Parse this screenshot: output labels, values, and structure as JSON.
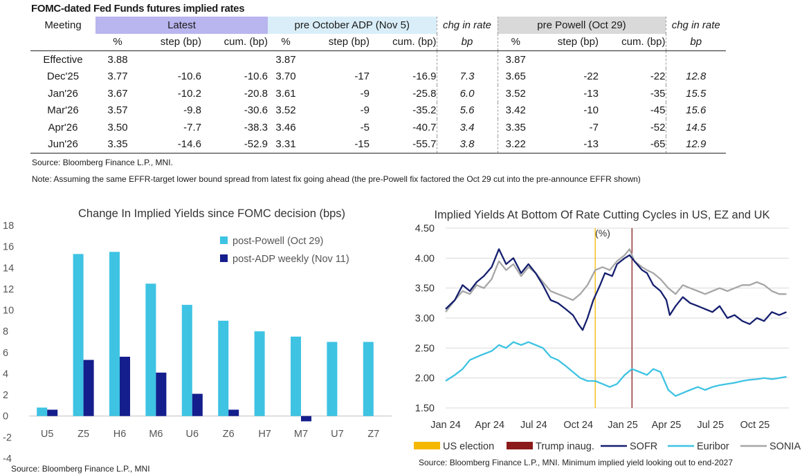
{
  "table": {
    "title": "FOMC-dated Fed Funds futures implied rates",
    "meeting_label": "Meeting",
    "group_latest": "Latest",
    "group_adp": "pre October ADP (Nov 5)",
    "group_chg1": "chg in rate",
    "group_powell": "pre Powell (Oct 29)",
    "group_chg2": "chg in rate",
    "units": [
      "%",
      "step (bp)",
      "cum. (bp)",
      "%",
      "step (bp)",
      "cum. (bp)",
      "bp",
      "%",
      "step (bp)",
      "cum. (bp)",
      "bp"
    ],
    "rows": [
      {
        "meeting": "Effective",
        "cells": [
          "3.88",
          "",
          "",
          "3.87",
          "",
          "",
          "",
          "3.87",
          "",
          "",
          ""
        ]
      },
      {
        "meeting": "Dec'25",
        "cells": [
          "3.77",
          "-10.6",
          "-10.6",
          "3.70",
          "-17",
          "-16.9",
          "7.3",
          "3.65",
          "-22",
          "-22",
          "12.8"
        ]
      },
      {
        "meeting": "Jan'26",
        "cells": [
          "3.67",
          "-10.2",
          "-20.8",
          "3.61",
          "-9",
          "-25.8",
          "6.0",
          "3.52",
          "-13",
          "-35",
          "15.5"
        ]
      },
      {
        "meeting": "Mar'26",
        "cells": [
          "3.57",
          "-9.8",
          "-30.6",
          "3.52",
          "-9",
          "-35.2",
          "5.6",
          "3.42",
          "-10",
          "-45",
          "15.6"
        ]
      },
      {
        "meeting": "Apr'26",
        "cells": [
          "3.50",
          "-7.7",
          "-38.3",
          "3.46",
          "-5",
          "-40.7",
          "3.4",
          "3.35",
          "-7",
          "-52",
          "14.5"
        ]
      },
      {
        "meeting": "Jun'26",
        "cells": [
          "3.35",
          "-14.6",
          "-52.9",
          "3.31",
          "-15",
          "-55.7",
          "3.8",
          "3.22",
          "-13",
          "-65",
          "12.9"
        ]
      }
    ],
    "source": "Source: Bloomberg Finance L.P., MNI.",
    "note": "Note: Assuming the same  EFFR-target lower bound spread from latest fix going ahead (the pre-Powell fix factored the Oct 29 cut into the pre-announce EFFR shown)"
  },
  "chart_data": [
    {
      "type": "bar",
      "title": "Change In Implied Yields since FOMC decision (bps)",
      "categories": [
        "U5",
        "Z5",
        "H6",
        "M6",
        "U6",
        "Z6",
        "H7",
        "M7",
        "U7",
        "Z7"
      ],
      "ylim": [
        -4,
        18
      ],
      "yticks": [
        -4,
        -2,
        0,
        2,
        4,
        6,
        8,
        10,
        12,
        14,
        16,
        18
      ],
      "grid": false,
      "legend_position": "top-right",
      "series": [
        {
          "name": "post-Powell (Oct 29)",
          "color": "#3ec3e3",
          "values": [
            0.8,
            15.3,
            15.5,
            12.5,
            10.5,
            9.0,
            8.0,
            7.5,
            7.0,
            7.0
          ]
        },
        {
          "name": "post-ADP weekly (Nov 11)",
          "color": "#141e8c",
          "values": [
            0.6,
            5.3,
            5.6,
            4.1,
            2.1,
            0.6,
            0,
            -0.5,
            0,
            0
          ]
        }
      ],
      "source": "Source: Bloomberg Finance L.P., MNI"
    },
    {
      "type": "line",
      "title": "Implied Yields At Bottom Of Rate Cutting Cycles in US, EZ and UK",
      "ylabel": "(%)",
      "ylim": [
        1.5,
        4.5
      ],
      "yticks": [
        "4.50",
        "4.00",
        "3.50",
        "3.00",
        "2.50",
        "2.00",
        "1.50"
      ],
      "xlim": [
        "2024-01-01",
        "2025-12-10"
      ],
      "xticks": [
        {
          "label": "Jan 24",
          "date": "2024-01-01"
        },
        {
          "label": "Apr 24",
          "date": "2024-04-01"
        },
        {
          "label": "Jul 24",
          "date": "2024-07-01"
        },
        {
          "label": "Oct 24",
          "date": "2024-10-01"
        },
        {
          "label": "Jan 25",
          "date": "2025-01-01"
        },
        {
          "label": "Apr 25",
          "date": "2025-04-01"
        },
        {
          "label": "Jul 25",
          "date": "2025-07-01"
        },
        {
          "label": "Oct 25",
          "date": "2025-10-01"
        }
      ],
      "grid": true,
      "legend_position": "bottom",
      "vlines": [
        {
          "name": "US election",
          "date": "2024-11-05",
          "color": "#f5b800"
        },
        {
          "name": "Trump inaug.",
          "date": "2025-01-20",
          "color": "#8b1a1a"
        }
      ],
      "series": [
        {
          "name": "SOFR",
          "color": "#141e6e",
          "points": [
            [
              "2024-01-01",
              3.15
            ],
            [
              "2024-01-20",
              3.3
            ],
            [
              "2024-02-05",
              3.55
            ],
            [
              "2024-02-20",
              3.45
            ],
            [
              "2024-03-05",
              3.6
            ],
            [
              "2024-03-20",
              3.7
            ],
            [
              "2024-04-05",
              3.85
            ],
            [
              "2024-04-20",
              4.15
            ],
            [
              "2024-05-05",
              3.9
            ],
            [
              "2024-05-20",
              4.0
            ],
            [
              "2024-06-05",
              3.75
            ],
            [
              "2024-06-20",
              3.9
            ],
            [
              "2024-07-05",
              3.75
            ],
            [
              "2024-07-20",
              3.55
            ],
            [
              "2024-08-05",
              3.3
            ],
            [
              "2024-08-20",
              3.25
            ],
            [
              "2024-09-05",
              3.15
            ],
            [
              "2024-09-20",
              3.05
            ],
            [
              "2024-10-01",
              2.9
            ],
            [
              "2024-10-10",
              2.8
            ],
            [
              "2024-10-20",
              3.0
            ],
            [
              "2024-11-01",
              3.3
            ],
            [
              "2024-11-15",
              3.55
            ],
            [
              "2024-11-25",
              3.75
            ],
            [
              "2024-12-10",
              3.7
            ],
            [
              "2024-12-20",
              3.9
            ],
            [
              "2025-01-05",
              4.0
            ],
            [
              "2025-01-15",
              4.05
            ],
            [
              "2025-01-25",
              3.95
            ],
            [
              "2025-02-10",
              3.8
            ],
            [
              "2025-02-20",
              3.75
            ],
            [
              "2025-03-05",
              3.55
            ],
            [
              "2025-03-20",
              3.45
            ],
            [
              "2025-04-01",
              3.3
            ],
            [
              "2025-04-08",
              3.05
            ],
            [
              "2025-04-20",
              3.2
            ],
            [
              "2025-05-05",
              3.35
            ],
            [
              "2025-05-20",
              3.25
            ],
            [
              "2025-06-05",
              3.2
            ],
            [
              "2025-06-20",
              3.15
            ],
            [
              "2025-07-05",
              3.1
            ],
            [
              "2025-07-20",
              3.2
            ],
            [
              "2025-08-05",
              3.0
            ],
            [
              "2025-08-20",
              3.05
            ],
            [
              "2025-09-05",
              2.95
            ],
            [
              "2025-09-20",
              2.9
            ],
            [
              "2025-10-05",
              3.0
            ],
            [
              "2025-10-20",
              2.95
            ],
            [
              "2025-11-05",
              3.1
            ],
            [
              "2025-11-20",
              3.05
            ],
            [
              "2025-12-05",
              3.1
            ]
          ]
        },
        {
          "name": "Euribor",
          "color": "#3ec3e3",
          "points": [
            [
              "2024-01-01",
              1.95
            ],
            [
              "2024-01-20",
              2.05
            ],
            [
              "2024-02-05",
              2.15
            ],
            [
              "2024-02-20",
              2.3
            ],
            [
              "2024-03-05",
              2.35
            ],
            [
              "2024-03-20",
              2.4
            ],
            [
              "2024-04-05",
              2.45
            ],
            [
              "2024-04-20",
              2.55
            ],
            [
              "2024-05-05",
              2.5
            ],
            [
              "2024-05-20",
              2.6
            ],
            [
              "2024-06-05",
              2.55
            ],
            [
              "2024-06-20",
              2.6
            ],
            [
              "2024-07-05",
              2.55
            ],
            [
              "2024-07-20",
              2.5
            ],
            [
              "2024-08-05",
              2.35
            ],
            [
              "2024-08-20",
              2.3
            ],
            [
              "2024-09-05",
              2.2
            ],
            [
              "2024-09-20",
              2.1
            ],
            [
              "2024-10-05",
              2.0
            ],
            [
              "2024-10-20",
              1.95
            ],
            [
              "2024-11-05",
              1.95
            ],
            [
              "2024-11-20",
              1.9
            ],
            [
              "2024-12-05",
              1.85
            ],
            [
              "2024-12-20",
              1.9
            ],
            [
              "2025-01-05",
              2.05
            ],
            [
              "2025-01-20",
              2.15
            ],
            [
              "2025-02-05",
              2.1
            ],
            [
              "2025-02-20",
              2.05
            ],
            [
              "2025-03-05",
              2.15
            ],
            [
              "2025-03-20",
              2.1
            ],
            [
              "2025-04-05",
              1.8
            ],
            [
              "2025-04-20",
              1.7
            ],
            [
              "2025-05-05",
              1.75
            ],
            [
              "2025-05-20",
              1.8
            ],
            [
              "2025-06-05",
              1.85
            ],
            [
              "2025-06-20",
              1.8
            ],
            [
              "2025-07-05",
              1.85
            ],
            [
              "2025-07-20",
              1.88
            ],
            [
              "2025-08-05",
              1.9
            ],
            [
              "2025-08-20",
              1.92
            ],
            [
              "2025-09-05",
              1.95
            ],
            [
              "2025-09-20",
              1.97
            ],
            [
              "2025-10-05",
              1.98
            ],
            [
              "2025-10-20",
              2.0
            ],
            [
              "2025-11-05",
              1.98
            ],
            [
              "2025-11-20",
              2.0
            ],
            [
              "2025-12-05",
              2.02
            ]
          ]
        },
        {
          "name": "SONIA",
          "color": "#a6a6a6",
          "points": [
            [
              "2024-01-01",
              3.1
            ],
            [
              "2024-01-20",
              3.3
            ],
            [
              "2024-02-05",
              3.45
            ],
            [
              "2024-02-20",
              3.4
            ],
            [
              "2024-03-05",
              3.55
            ],
            [
              "2024-03-20",
              3.5
            ],
            [
              "2024-04-05",
              3.65
            ],
            [
              "2024-04-20",
              3.95
            ],
            [
              "2024-05-05",
              3.8
            ],
            [
              "2024-05-20",
              3.9
            ],
            [
              "2024-06-05",
              3.7
            ],
            [
              "2024-06-20",
              3.85
            ],
            [
              "2024-07-05",
              3.75
            ],
            [
              "2024-07-20",
              3.6
            ],
            [
              "2024-08-05",
              3.45
            ],
            [
              "2024-08-20",
              3.4
            ],
            [
              "2024-09-05",
              3.35
            ],
            [
              "2024-09-20",
              3.3
            ],
            [
              "2024-10-05",
              3.4
            ],
            [
              "2024-10-20",
              3.55
            ],
            [
              "2024-11-05",
              3.8
            ],
            [
              "2024-11-20",
              3.85
            ],
            [
              "2024-12-05",
              3.8
            ],
            [
              "2024-12-20",
              3.95
            ],
            [
              "2025-01-05",
              4.05
            ],
            [
              "2025-01-15",
              4.15
            ],
            [
              "2025-01-25",
              3.95
            ],
            [
              "2025-02-10",
              3.85
            ],
            [
              "2025-02-20",
              3.8
            ],
            [
              "2025-03-05",
              3.75
            ],
            [
              "2025-03-20",
              3.65
            ],
            [
              "2025-04-05",
              3.5
            ],
            [
              "2025-04-20",
              3.4
            ],
            [
              "2025-05-05",
              3.55
            ],
            [
              "2025-05-20",
              3.5
            ],
            [
              "2025-06-05",
              3.45
            ],
            [
              "2025-06-20",
              3.4
            ],
            [
              "2025-07-05",
              3.45
            ],
            [
              "2025-07-20",
              3.5
            ],
            [
              "2025-08-05",
              3.45
            ],
            [
              "2025-08-20",
              3.5
            ],
            [
              "2025-09-05",
              3.55
            ],
            [
              "2025-09-20",
              3.55
            ],
            [
              "2025-10-05",
              3.6
            ],
            [
              "2025-10-20",
              3.55
            ],
            [
              "2025-11-05",
              3.45
            ],
            [
              "2025-11-20",
              3.4
            ],
            [
              "2025-12-05",
              3.4
            ]
          ]
        }
      ],
      "source": "Source: Bloomberg Finance L.P., MNI. Minimum implied yield looking out to end-2027"
    }
  ]
}
